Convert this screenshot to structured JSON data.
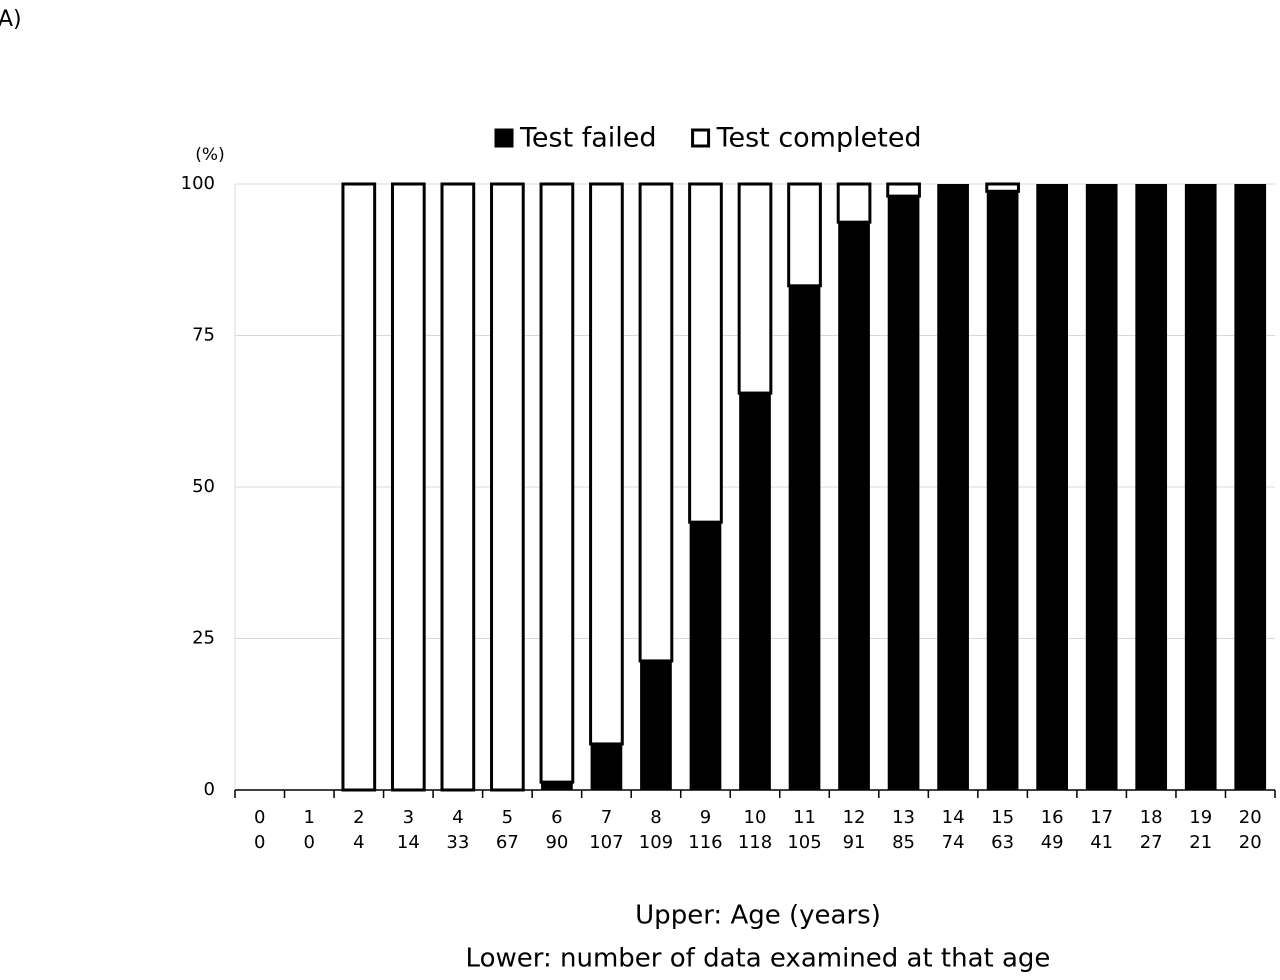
{
  "chart_data": {
    "type": "stacked_bar",
    "panel_label": "A)",
    "y_unit_label": "(%)",
    "xlabel_upper": "Upper: Age (years)",
    "xlabel_lower": "Lower: number of data examined at that age",
    "categories": [
      "0",
      "1",
      "2",
      "3",
      "4",
      "5",
      "6",
      "7",
      "8",
      "9",
      "10",
      "11",
      "12",
      "13",
      "14",
      "15",
      "16",
      "17",
      "18",
      "19",
      "20"
    ],
    "sample_sizes": [
      0,
      0,
      4,
      14,
      33,
      67,
      90,
      107,
      109,
      116,
      118,
      105,
      91,
      85,
      74,
      63,
      49,
      41,
      27,
      21,
      20
    ],
    "series": [
      {
        "name": "Test failed",
        "color": "#000000",
        "values": [
          null,
          null,
          0,
          0,
          0,
          0,
          1.3,
          7.6,
          21.3,
          44.2,
          65.5,
          83.2,
          93.7,
          98.0,
          100,
          98.8,
          100,
          100,
          100,
          100,
          100
        ]
      },
      {
        "name": "Test completed",
        "color": "#ffffff",
        "values": [
          null,
          null,
          100,
          100,
          100,
          100,
          98.7,
          92.4,
          78.7,
          55.8,
          34.5,
          16.8,
          6.3,
          2.0,
          0,
          1.2,
          0,
          0,
          0,
          0,
          0
        ]
      }
    ],
    "ylim": [
      0,
      100
    ],
    "yticks": [
      0,
      25,
      50,
      75,
      100
    ],
    "grid": true,
    "legend": "top"
  }
}
